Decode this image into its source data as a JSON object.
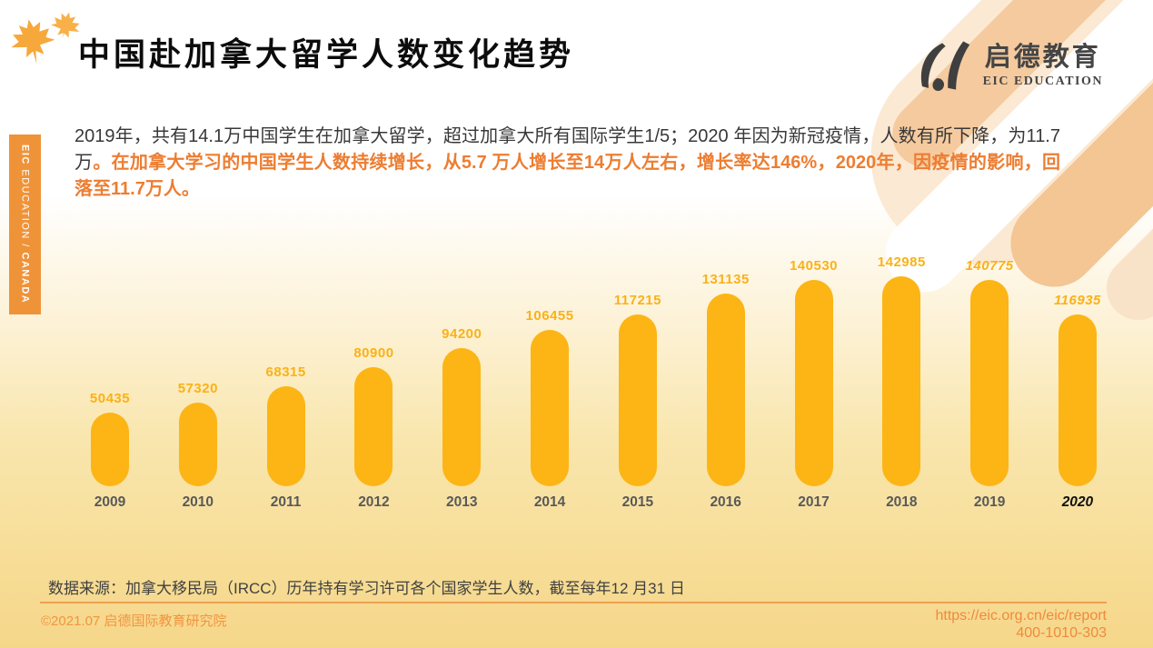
{
  "header": {
    "title": "中国赴加拿大留学人数变化趋势",
    "logo_cn": "启德教育",
    "logo_en": "EIC EDUCATION"
  },
  "sidebar": {
    "brand": "EIC",
    "brand_suffix": " EDUCATION / ",
    "region": "CANADA"
  },
  "intro": {
    "normal": "2019年，共有14.1万中国学生在加拿大留学，超过加拿大所有国际学生1/5；2020 年因为新冠疫情，人数有所下降，为11.7 万",
    "highlight": "。在加拿大学习的中国学生人数持续增长，从5.7 万人增长至14万人左右，增长率达146%，2020年，因疫情的影响，回落至11.7万人。"
  },
  "chart_data": {
    "type": "bar",
    "title": "",
    "xlabel": "",
    "ylabel": "",
    "categories": [
      "2009",
      "2010",
      "2011",
      "2012",
      "2013",
      "2014",
      "2015",
      "2016",
      "2017",
      "2018",
      "2019",
      "2020"
    ],
    "values": [
      50435,
      57320,
      68315,
      80900,
      94200,
      106455,
      117215,
      131135,
      140530,
      142985,
      140775,
      116935
    ],
    "value_label_italic": [
      false,
      false,
      false,
      false,
      false,
      false,
      false,
      false,
      false,
      false,
      true,
      true
    ],
    "category_emphasis": [
      false,
      false,
      false,
      false,
      false,
      false,
      false,
      false,
      false,
      false,
      false,
      true
    ],
    "ylim": [
      0,
      150000
    ],
    "grid": false,
    "legend_position": "none",
    "bar_color": "#FCB515",
    "label_color": "#FBB117",
    "axis_label_color": "#595959"
  },
  "source_note": "数据来源：加拿大移民局（IRCC）历年持有学习许可各个国家学生人数，截至每年12 月31 日",
  "footer": {
    "copyright": "©2021.07 启德国际教育研究院",
    "url": "https://eic.org.cn/eic/report",
    "hotline": "400-1010-303"
  }
}
